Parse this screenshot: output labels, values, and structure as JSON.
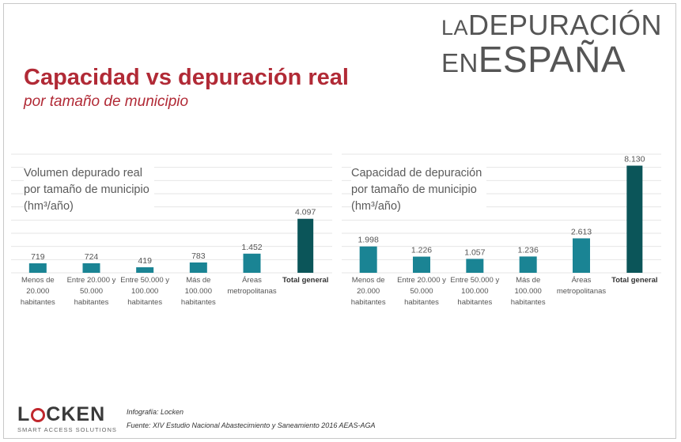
{
  "brand": {
    "line1_small": "LA",
    "line1_big": "DEPURACIÓN",
    "line2_small": "EN",
    "line2_big": "ESPAÑA"
  },
  "title": "Capacidad vs depuración real",
  "subtitle": "por tamaño de municipio",
  "footer": {
    "logo_left": "L",
    "logo_right": "CKEN",
    "logo_tagline": "SMART ACCESS SOLUTIONS",
    "credit": "Infografía: Locken",
    "source": "Fuente: XIV Estudio Nacional Abastecimiento y Saneamiento 2016 AEAS-AGA"
  },
  "colors": {
    "bar": "#1a8494",
    "bar_total": "#0b5559",
    "title": "#b12a36",
    "grid": "#e6e6e6"
  },
  "chart_data": [
    {
      "type": "bar",
      "label_lines": [
        "Volumen depurado real",
        "por tamaño de municipio",
        "(hm³/año)"
      ],
      "categories": [
        [
          "Menos de",
          "20.000",
          "habitantes"
        ],
        [
          "Entre 20.000 y",
          "50.000",
          "habitantes"
        ],
        [
          "Entre 50.000 y",
          "100.000",
          "habitantes"
        ],
        [
          "Más de",
          "100.000",
          "habitantes"
        ],
        [
          "Áreas",
          "metropolitanas"
        ],
        [
          "Total general"
        ]
      ],
      "values": [
        719,
        724,
        419,
        783,
        1452,
        4097
      ],
      "value_labels": [
        "719",
        "724",
        "419",
        "783",
        "1.452",
        "4.097"
      ],
      "ylim": [
        0,
        9000
      ],
      "grid": true
    },
    {
      "type": "bar",
      "label_lines": [
        "Capacidad de depuración",
        "por tamaño de municipio",
        "(hm³/año)"
      ],
      "categories": [
        [
          "Menos de",
          "20.000",
          "habitantes"
        ],
        [
          "Entre 20.000 y",
          "50.000",
          "habitantes"
        ],
        [
          "Entre 50.000 y",
          "100.000",
          "habitantes"
        ],
        [
          "Más de",
          "100.000",
          "habitantes"
        ],
        [
          "Áreas",
          "metropolitanas"
        ],
        [
          "Total general"
        ]
      ],
      "values": [
        1998,
        1226,
        1057,
        1236,
        2613,
        8130
      ],
      "value_labels": [
        "1.998",
        "1.226",
        "1.057",
        "1.236",
        "2.613",
        "8.130"
      ],
      "ylim": [
        0,
        9000
      ],
      "grid": true
    }
  ]
}
